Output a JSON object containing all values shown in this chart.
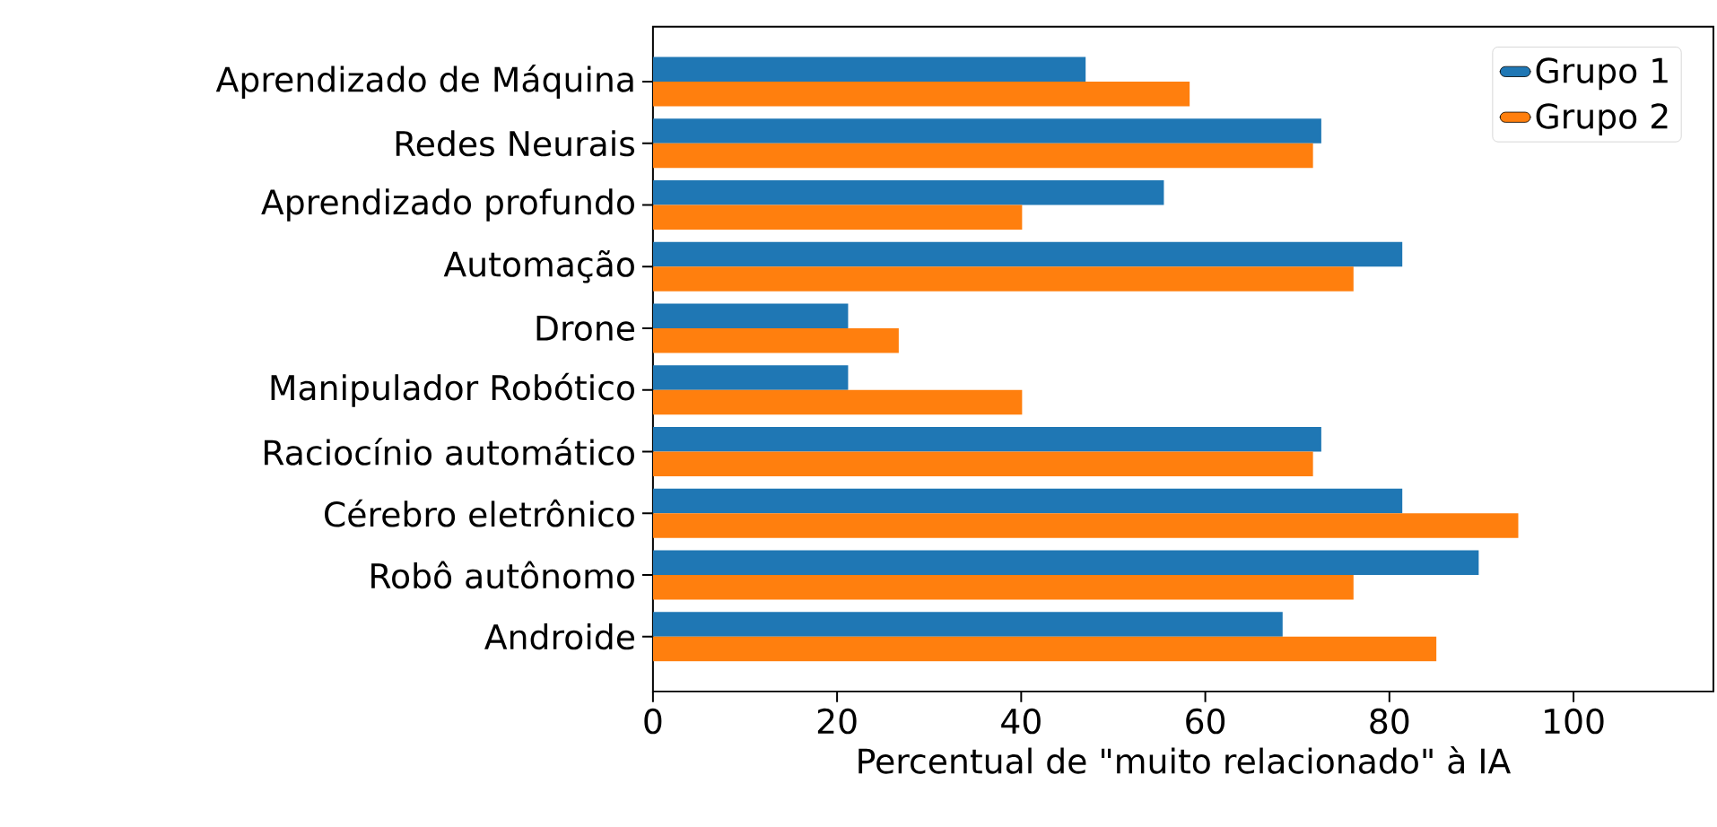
{
  "chart_data": {
    "type": "bar",
    "orientation": "horizontal",
    "xlabel": "Percentual de \"muito relacionado\" à IA",
    "categories": [
      "Aprendizado de Máquina",
      "Redes Neurais",
      "Aprendizado profundo",
      "Automação",
      "Drone",
      "Manipulador Robótico",
      "Raciocínio automático",
      "Cérebro eletrônico",
      "Robô autônomo",
      "Androide"
    ],
    "series": [
      {
        "name": "Grupo 1",
        "color": "#1f77b4",
        "values": [
          47.0,
          72.6,
          55.5,
          81.4,
          21.2,
          21.2,
          72.6,
          81.4,
          89.7,
          68.4
        ]
      },
      {
        "name": "Grupo 2",
        "color": "#ff7f0e",
        "values": [
          58.3,
          71.7,
          40.1,
          76.1,
          26.7,
          40.1,
          71.7,
          94.0,
          76.1,
          85.1
        ]
      }
    ],
    "xlim": [
      0,
      115.2
    ],
    "xticks": [
      0,
      20,
      40,
      60,
      80,
      100
    ],
    "legend": "top right"
  }
}
